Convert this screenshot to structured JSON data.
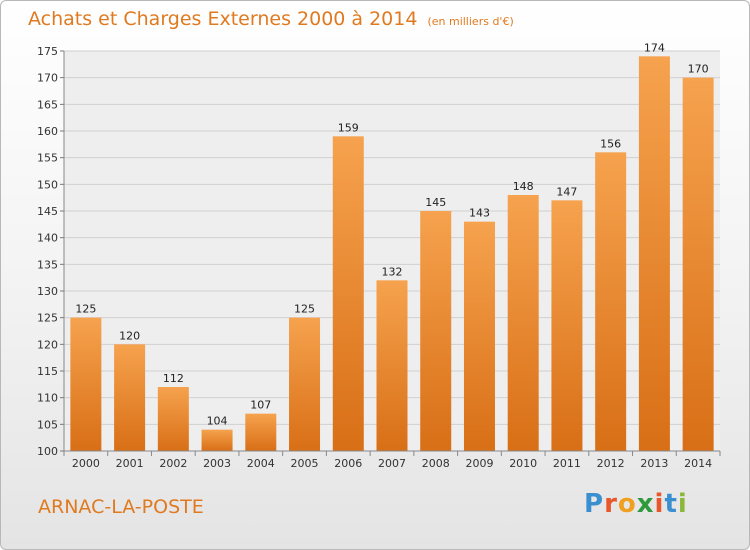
{
  "title": "Achats et Charges Externes 2000 à 2014",
  "unit": "(en milliers d'€)",
  "commune": "ARNAC-LA-POSTE",
  "logo": {
    "letters": [
      {
        "ch": "P",
        "color": "#3a8fd0"
      },
      {
        "ch": "r",
        "color": "#e8572a"
      },
      {
        "ch": "o",
        "color": "#f0a020"
      },
      {
        "ch": "x",
        "color": "#2f9a3c"
      },
      {
        "ch": "i",
        "color": "#e8572a"
      },
      {
        "ch": "t",
        "color": "#3a8fd0"
      },
      {
        "ch": "i",
        "color": "#8bb83a"
      }
    ]
  },
  "colors": {
    "bar_top": "#f6a24e",
    "bar_bottom": "#d86f16",
    "label": "#222222",
    "grid": "#d0d0d0"
  },
  "chart_data": {
    "type": "bar",
    "categories": [
      "2000",
      "2001",
      "2002",
      "2003",
      "2004",
      "2005",
      "2006",
      "2007",
      "2008",
      "2009",
      "2010",
      "2011",
      "2012",
      "2013",
      "2014"
    ],
    "values": [
      125,
      120,
      112,
      104,
      107,
      125,
      159,
      132,
      145,
      143,
      148,
      147,
      156,
      174,
      170
    ],
    "title": "Achats et Charges Externes 2000 à 2014",
    "ylim": [
      100,
      175
    ],
    "yticks": [
      100,
      105,
      110,
      115,
      120,
      125,
      130,
      135,
      140,
      145,
      150,
      155,
      160,
      165,
      170,
      175
    ],
    "grid": true,
    "data_labels": true
  }
}
